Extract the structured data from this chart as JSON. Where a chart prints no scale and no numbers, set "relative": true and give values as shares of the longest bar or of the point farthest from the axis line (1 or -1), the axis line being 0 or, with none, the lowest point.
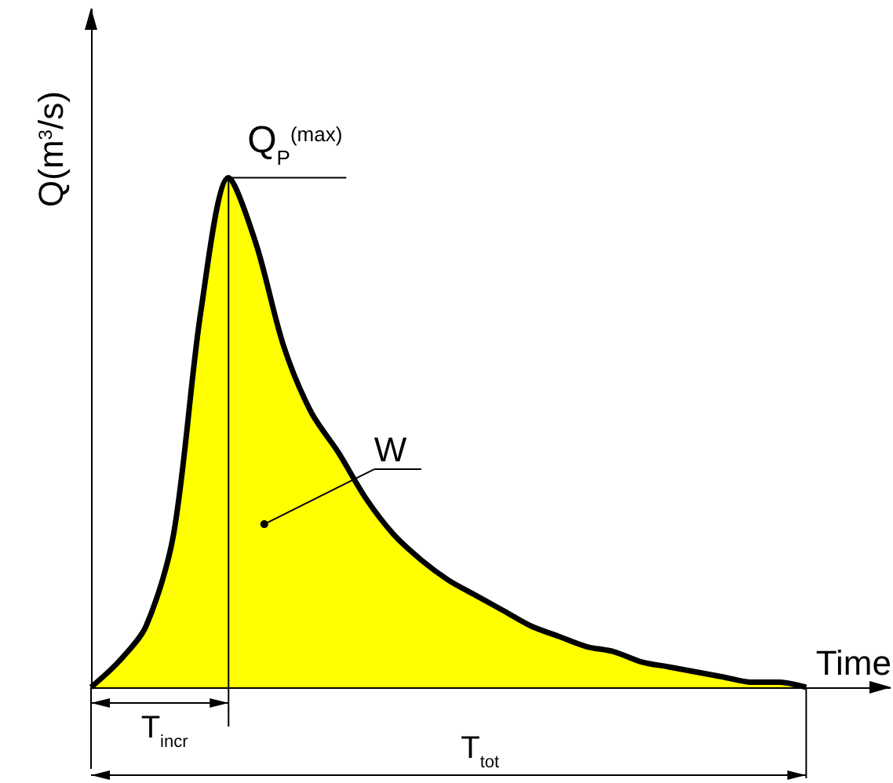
{
  "chart_data": {
    "type": "area",
    "relative": true,
    "xlabel": "Time",
    "ylabel": "Q(m$^{3}$/s)",
    "color": "#ffff00",
    "categories": [
      null,
      null,
      null,
      null,
      null,
      null,
      null,
      null,
      null,
      null,
      null,
      null,
      null,
      null,
      null,
      null,
      null,
      null,
      null,
      null,
      null,
      null,
      null,
      null,
      null,
      null,
      null
    ],
    "values": [
      0,
      0.05,
      0.12,
      0.3,
      0.74,
      1,
      0.87,
      0.67,
      0.54,
      0.46,
      0.37,
      0.3,
      0.25,
      0.21,
      0.18,
      0.15,
      0.12,
      0.1,
      0.08,
      0.07,
      0.05,
      0.04,
      0.03,
      0.02,
      0.01,
      0.01,
      0
    ],
    "annotations": [
      "Q$_{P}$$^{(max)}$",
      "W",
      "T$_{incr}$",
      "T$_{tot}$"
    ],
    "grid": false
  }
}
